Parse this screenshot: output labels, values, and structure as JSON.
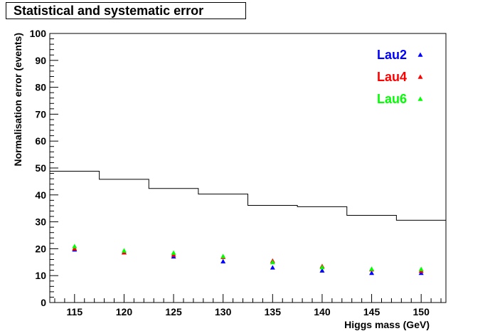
{
  "chart_data": {
    "type": "scatter",
    "title": "Statistical and systematic error",
    "xlabel": "Higgs mass (GeV)",
    "ylabel": "Normalisation error (events)",
    "xlim": [
      112.5,
      152.5
    ],
    "ylim": [
      0,
      100
    ],
    "x_ticks": [
      115,
      120,
      125,
      130,
      135,
      140,
      145,
      150
    ],
    "y_ticks": [
      0,
      10,
      20,
      30,
      40,
      50,
      60,
      70,
      80,
      90,
      100
    ],
    "grid": false,
    "legend_position": "top-right",
    "step_line": {
      "bin_edges": [
        112.5,
        117.5,
        122.5,
        127.5,
        132.5,
        137.5,
        142.5,
        147.5,
        152.5
      ],
      "values": [
        48.8,
        45.8,
        42.4,
        40.3,
        36.1,
        35.6,
        32.4,
        30.6
      ],
      "color": "#000000"
    },
    "series": [
      {
        "name": "Lau2",
        "color": "#0000ff",
        "x": [
          115,
          120,
          125,
          130,
          135,
          140,
          145,
          150
        ],
        "y": [
          19.7,
          18.7,
          17.1,
          15.3,
          13.0,
          11.9,
          11.0,
          11.0
        ]
      },
      {
        "name": "Lau4",
        "color": "#ff0000",
        "x": [
          115,
          120,
          125,
          130,
          135,
          140,
          145,
          150
        ],
        "y": [
          20.1,
          18.6,
          17.8,
          16.9,
          15.5,
          13.5,
          12.3,
          11.8
        ]
      },
      {
        "name": "Lau6",
        "color": "#00ff00",
        "x": [
          115,
          120,
          125,
          130,
          135,
          140,
          145,
          150
        ],
        "y": [
          20.9,
          19.3,
          18.5,
          17.2,
          15.0,
          13.1,
          12.5,
          12.4
        ]
      }
    ]
  }
}
